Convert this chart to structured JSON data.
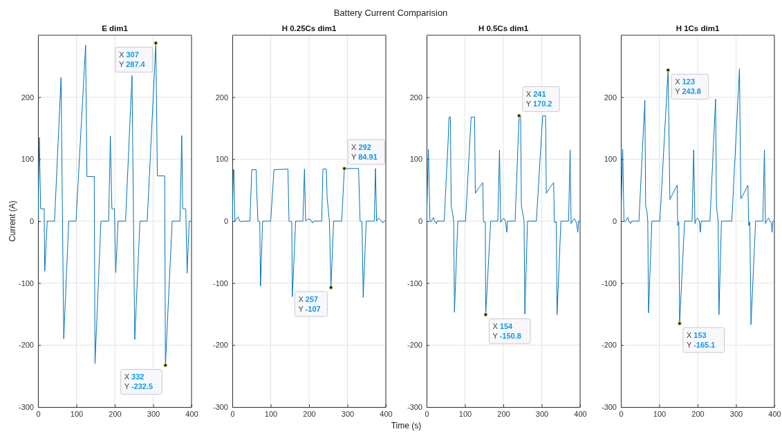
{
  "chart_data": [
    {
      "type": "line",
      "title": "E dim1",
      "ylabel": "Current (A)",
      "xlim": [
        0,
        400
      ],
      "xticks": [
        0,
        100,
        200,
        300,
        400
      ],
      "ylim": [
        -300,
        300
      ],
      "yticks": [
        -300,
        -200,
        -100,
        0,
        100,
        200
      ],
      "grid": true,
      "series": [
        {
          "color": "#0072bd",
          "x": [
            0,
            3.4,
            6.8,
            16,
            17.5,
            24,
            43,
            60,
            63,
            67,
            80,
            99,
            124,
            127.5,
            146.5,
            148.5,
            164,
            184,
            188.5,
            192.5,
            199,
            202.5,
            208.5,
            228,
            245,
            248,
            252,
            265.5,
            284.5,
            307,
            311,
            330,
            332,
            349.5,
            370,
            374.5,
            377,
            385,
            388.5,
            394,
            400
          ],
          "values": [
            0,
            135,
            20,
            20,
            -81,
            0,
            0,
            232,
            50,
            -190,
            0,
            0,
            284,
            72,
            72,
            -230,
            0,
            0,
            137,
            20,
            20,
            -83,
            0,
            0,
            235,
            50,
            -191,
            0,
            0,
            287.4,
            73,
            73,
            -232.5,
            0,
            0,
            138,
            20,
            20,
            -84,
            0,
            0
          ]
        }
      ],
      "annotations": [
        {
          "text": "X 307\nY 287.4",
          "x": 307,
          "y": 287.4
        },
        {
          "text": "X 332\nY -232.5",
          "x": 332,
          "y": -232.5
        }
      ]
    },
    {
      "type": "line",
      "title": "H 0.25Cs dim1",
      "subtitle": "Battery Current Comparision",
      "xlabel": "Time (s)",
      "xlim": [
        0,
        400
      ],
      "xticks": [
        0,
        100,
        200,
        300,
        400
      ],
      "ylim": [
        -300,
        300
      ],
      "yticks": [
        -300,
        -200,
        -100,
        0,
        100,
        200
      ],
      "grid": true,
      "series": [
        {
          "color": "#0072bd",
          "x": [
            0,
            2.7,
            4,
            6.7,
            15.5,
            19,
            24,
            29,
            46,
            50.6,
            62,
            64,
            66.8,
            71.5,
            73.5,
            79,
            100,
            108.6,
            145,
            147.7,
            155,
            156.5,
            165,
            184,
            188,
            191,
            196,
            203,
            209,
            212,
            233,
            236,
            245,
            247,
            253,
            257,
            264,
            285,
            292,
            329,
            333,
            338,
            341,
            349,
            370,
            373,
            376,
            381,
            385,
            392,
            395,
            400
          ],
          "values": [
            0,
            83,
            83,
            0,
            7,
            0,
            -1,
            0,
            0,
            83,
            83,
            42,
            0,
            -1,
            -105,
            0,
            0,
            83,
            84,
            0,
            -1,
            -122,
            0,
            0,
            84,
            0,
            3,
            3,
            -3,
            0,
            0,
            84,
            84,
            38,
            0,
            -107,
            0,
            0,
            84.91,
            85,
            0,
            -1,
            -123,
            0,
            0,
            85,
            0,
            5,
            3,
            -3,
            0,
            0
          ]
        }
      ],
      "annotations": [
        {
          "text": "X 292\nY 84.91",
          "x": 292,
          "y": 84.91
        },
        {
          "text": "X 257\nY -107",
          "x": 257,
          "y": -107
        }
      ]
    },
    {
      "type": "line",
      "title": "H 0.5Cs dim1",
      "xlim": [
        0,
        400
      ],
      "xticks": [
        0,
        100,
        200,
        300,
        400
      ],
      "ylim": [
        -300,
        300
      ],
      "yticks": [
        -300,
        -200,
        -100,
        0,
        100,
        200
      ],
      "grid": true,
      "series": [
        {
          "color": "#0072bd",
          "x": [
            0,
            4.7,
            8.7,
            12,
            17.5,
            21,
            25.5,
            27.5,
            45.7,
            56,
            58.5,
            62,
            64,
            68.5,
            70.6,
            72.6,
            81.3,
            101.5,
            116,
            125,
            127,
            136.5,
            146.5,
            148,
            153,
            154,
            167,
            185.5,
            190,
            193,
            198.3,
            202,
            206,
            209,
            211,
            230.6,
            241,
            245,
            247,
            254,
            256,
            263,
            286,
            302.5,
            310,
            312,
            321,
            331,
            333,
            338,
            340,
            350,
            370,
            374,
            376.5,
            380.5,
            385,
            388.5,
            391,
            394,
            396,
            400
          ],
          "values": [
            0,
            116,
            0,
            -1,
            6,
            0,
            -4,
            0,
            0,
            128,
            168,
            168,
            25,
            9,
            0,
            -147,
            0,
            0,
            168,
            168,
            45,
            54,
            62,
            -1,
            -1,
            -150.8,
            0,
            0,
            115,
            -2,
            3,
            4,
            -1,
            -18,
            0,
            0,
            170.2,
            170,
            25,
            0,
            -150,
            0,
            0,
            170,
            170,
            45,
            54,
            62,
            -2,
            -1,
            -151,
            0,
            0,
            115,
            -4,
            1,
            4,
            0,
            -3,
            -18,
            0,
            0
          ]
        }
      ],
      "annotations": [
        {
          "text": "X 241\nY 170.2",
          "x": 241,
          "y": 170.2
        },
        {
          "text": "X 154\nY -150.8",
          "x": 154,
          "y": -150.8
        }
      ]
    },
    {
      "type": "line",
      "title": "H 1Cs dim1",
      "xlim": [
        0,
        400
      ],
      "xticks": [
        0,
        100,
        200,
        300,
        400
      ],
      "ylim": [
        -300,
        300
      ],
      "yticks": [
        -300,
        -200,
        -100,
        0,
        100,
        200
      ],
      "grid": true,
      "series": [
        {
          "color": "#0072bd",
          "x": [
            0,
            4.7,
            8,
            10.8,
            18,
            21,
            25.5,
            27.6,
            47,
            62.5,
            64.5,
            68,
            70,
            72,
            80.7,
            101.5,
            123,
            127.7,
            138,
            146.5,
            148,
            151,
            153,
            166,
            185.5,
            189.6,
            193,
            195.6,
            200,
            204.4,
            207,
            209,
            232,
            246.7,
            249,
            253.4,
            255.5,
            262,
            289,
            309,
            312.6,
            323,
            331,
            333,
            336,
            339,
            351,
            370,
            374,
            376.5,
            381,
            385,
            388.5,
            392,
            394,
            396,
            400
          ],
          "values": [
            0,
            116,
            0,
            -1,
            6,
            0,
            -4,
            0,
            0,
            195,
            25,
            15,
            0,
            -148,
            0,
            0,
            243.8,
            35,
            48,
            58,
            -7,
            -1,
            -165.1,
            0,
            0,
            115,
            -4,
            2,
            5,
            0,
            -18,
            0,
            0,
            197,
            25,
            0,
            -151,
            0,
            0,
            246,
            36,
            48,
            58,
            -7,
            -1,
            -167,
            0,
            0,
            115,
            -4,
            2,
            5,
            0,
            -3,
            -18,
            0,
            0
          ]
        }
      ],
      "annotations": [
        {
          "text": "X 123\nY 243.8",
          "x": 123,
          "y": 243.8
        },
        {
          "text": "X 153\nY -165.1",
          "x": 153,
          "y": -165.1
        }
      ]
    }
  ]
}
